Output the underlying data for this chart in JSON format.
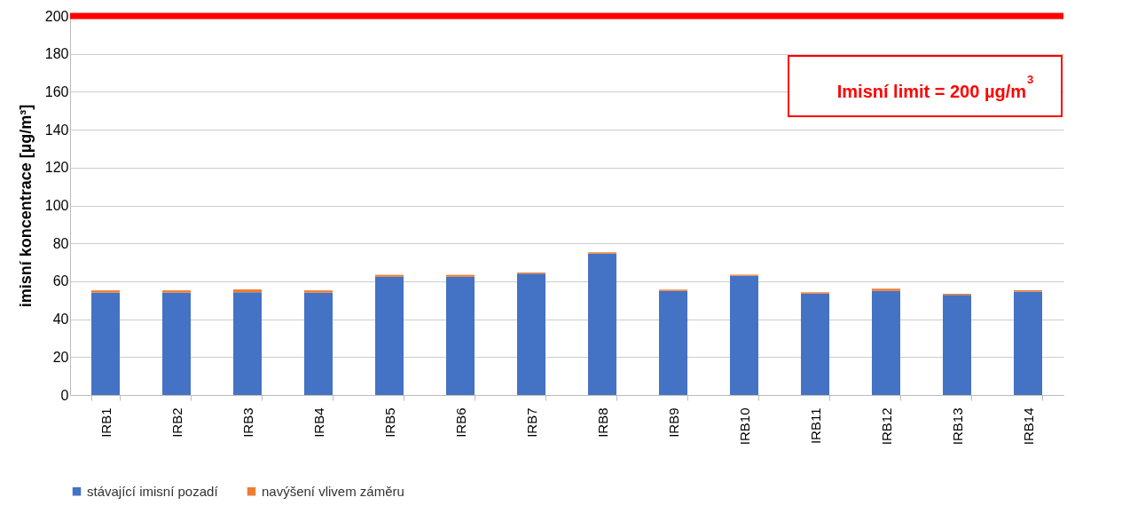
{
  "chart_data": {
    "type": "bar",
    "stacked": true,
    "ylabel": "imisní koncentrace [µg/m³]",
    "categories": [
      "IRB1",
      "IRB2",
      "IRB3",
      "IRB4",
      "IRB5",
      "IRB6",
      "IRB7",
      "IRB8",
      "IRB9",
      "IRB10",
      "IRB11",
      "IRB12",
      "IRB13",
      "IRB14"
    ],
    "series": [
      {
        "name": "stávající imisní pozadí",
        "color": "#4472c4",
        "values": [
          54,
          54,
          54.2,
          54,
          62.4,
          62.4,
          64,
          74.6,
          54.9,
          62.9,
          53.5,
          54.9,
          52.8,
          54.6
        ]
      },
      {
        "name": "navýšení vlivem záměru",
        "color": "#ed7d31",
        "values": [
          1.2,
          1.2,
          1.5,
          1.2,
          1.0,
          1.0,
          0.6,
          0.7,
          0.7,
          0.6,
          0.7,
          1.2,
          0.6,
          0.7
        ]
      }
    ],
    "ylim": [
      0,
      200
    ],
    "yticks": [
      0,
      20,
      40,
      60,
      80,
      100,
      120,
      140,
      160,
      180,
      200
    ],
    "grid": "y",
    "legend": "bottom",
    "ref_lines": [
      {
        "axis": "y",
        "value": 200,
        "label": "Imisní limit = 200 µg/m$^{3}$",
        "color": "#ff0000"
      }
    ]
  }
}
